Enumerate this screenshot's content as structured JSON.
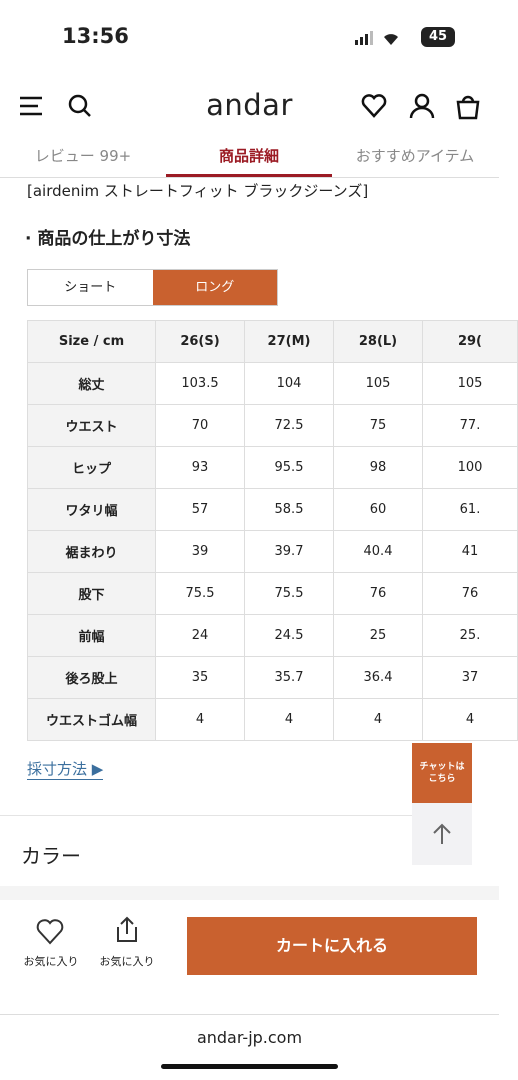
{
  "status": {
    "time": "13:56",
    "battery": "45"
  },
  "header": {
    "logo": "andar"
  },
  "tabs": [
    "レビュー 99+",
    "商品詳細",
    "おすすめアイテム"
  ],
  "product_name": "[airdenim ストレートフィット ブラックジーンズ]",
  "section_title": "· 商品の仕上がり寸法",
  "toggle": [
    "ショート",
    "ロング"
  ],
  "table": {
    "header": [
      "Size / cm",
      "26(S)",
      "27(M)",
      "28(L)",
      "29("
    ],
    "rows": [
      [
        "総丈",
        "103.5",
        "104",
        "105",
        "105"
      ],
      [
        "ウエスト",
        "70",
        "72.5",
        "75",
        "77."
      ],
      [
        "ヒップ",
        "93",
        "95.5",
        "98",
        "100"
      ],
      [
        "ワタリ幅",
        "57",
        "58.5",
        "60",
        "61."
      ],
      [
        "裾まわり",
        "39",
        "39.7",
        "40.4",
        "41"
      ],
      [
        "股下",
        "75.5",
        "75.5",
        "76",
        "76"
      ],
      [
        "前幅",
        "24",
        "24.5",
        "25",
        "25."
      ],
      [
        "後ろ股上",
        "35",
        "35.7",
        "36.4",
        "37"
      ],
      [
        "ウエストゴム幅",
        "4",
        "4",
        "4",
        "4"
      ]
    ]
  },
  "measure_link": "採寸方法 ▶",
  "chat": [
    "チャットは",
    "こちら"
  ],
  "color_section": "カラー",
  "bottom_bar": {
    "favorite": "お気に入り",
    "share": "お気に入り",
    "cart_button": "カートに入れる"
  },
  "url": "andar-jp.com"
}
